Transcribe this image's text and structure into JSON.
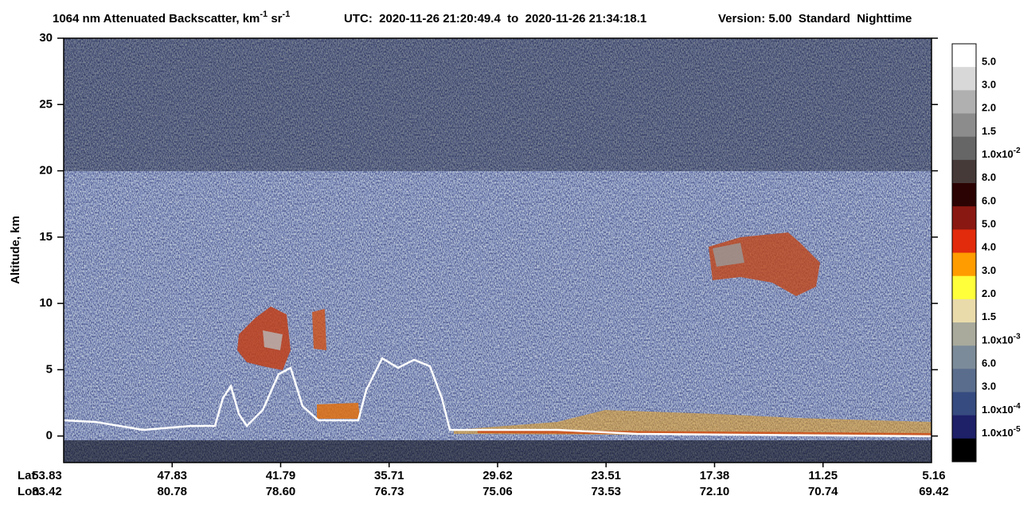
{
  "chart_data": {
    "type": "heatmap",
    "title": [
      {
        "text": "1064 nm Attenuated Backscatter, km"
      },
      {
        "sup": "-1"
      },
      {
        "text": " sr"
      },
      {
        "sup": "-1"
      }
    ],
    "utc": "UTC:  2020-11-26 21:20:49.4  to  2020-11-26 21:34:18.1",
    "version": "Version: 5.00  Standard  Nighttime",
    "ylabel": "Altitude, km",
    "ylim": [
      -2,
      30
    ],
    "yticks": [
      0,
      5,
      10,
      15,
      20,
      25,
      30
    ],
    "x_rows": [
      {
        "name": "Lat",
        "labels": [
          "53.83",
          "47.83",
          "41.79",
          "35.71",
          "29.62",
          "23.51",
          "17.38",
          "11.25",
          "5.16"
        ]
      },
      {
        "name": "Lon",
        "labels": [
          "83.42",
          "80.78",
          "78.60",
          "76.73",
          "75.06",
          "73.53",
          "72.10",
          "70.74",
          "69.42"
        ]
      }
    ],
    "colorbar": {
      "colors": [
        "#ffffff",
        "#d8d8d8",
        "#b0b0b0",
        "#8c8c8c",
        "#666666",
        "#463a38",
        "#2c0303",
        "#8a1812",
        "#e22b0c",
        "#ff9c00",
        "#ffff3a",
        "#eadbab",
        "#a9aa9c",
        "#7c8b99",
        "#5a6d8d",
        "#364b80",
        "#1e2068",
        "#000000"
      ],
      "labels": [
        {
          "text": "5.0"
        },
        {
          "text": "3.0"
        },
        {
          "text": "2.0"
        },
        {
          "text": "1.5"
        },
        {
          "text": "1.0x10",
          "sup": "-2"
        },
        {
          "text": "8.0"
        },
        {
          "text": "6.0"
        },
        {
          "text": "5.0"
        },
        {
          "text": "4.0"
        },
        {
          "text": "3.0"
        },
        {
          "text": "2.0"
        },
        {
          "text": "1.5"
        },
        {
          "text": "1.0x10",
          "sup": "-3"
        },
        {
          "text": "6.0"
        },
        {
          "text": "3.0"
        },
        {
          "text": "1.0x10",
          "sup": "-4"
        },
        {
          "text": "1.0x10",
          "sup": "-5"
        }
      ]
    }
  }
}
